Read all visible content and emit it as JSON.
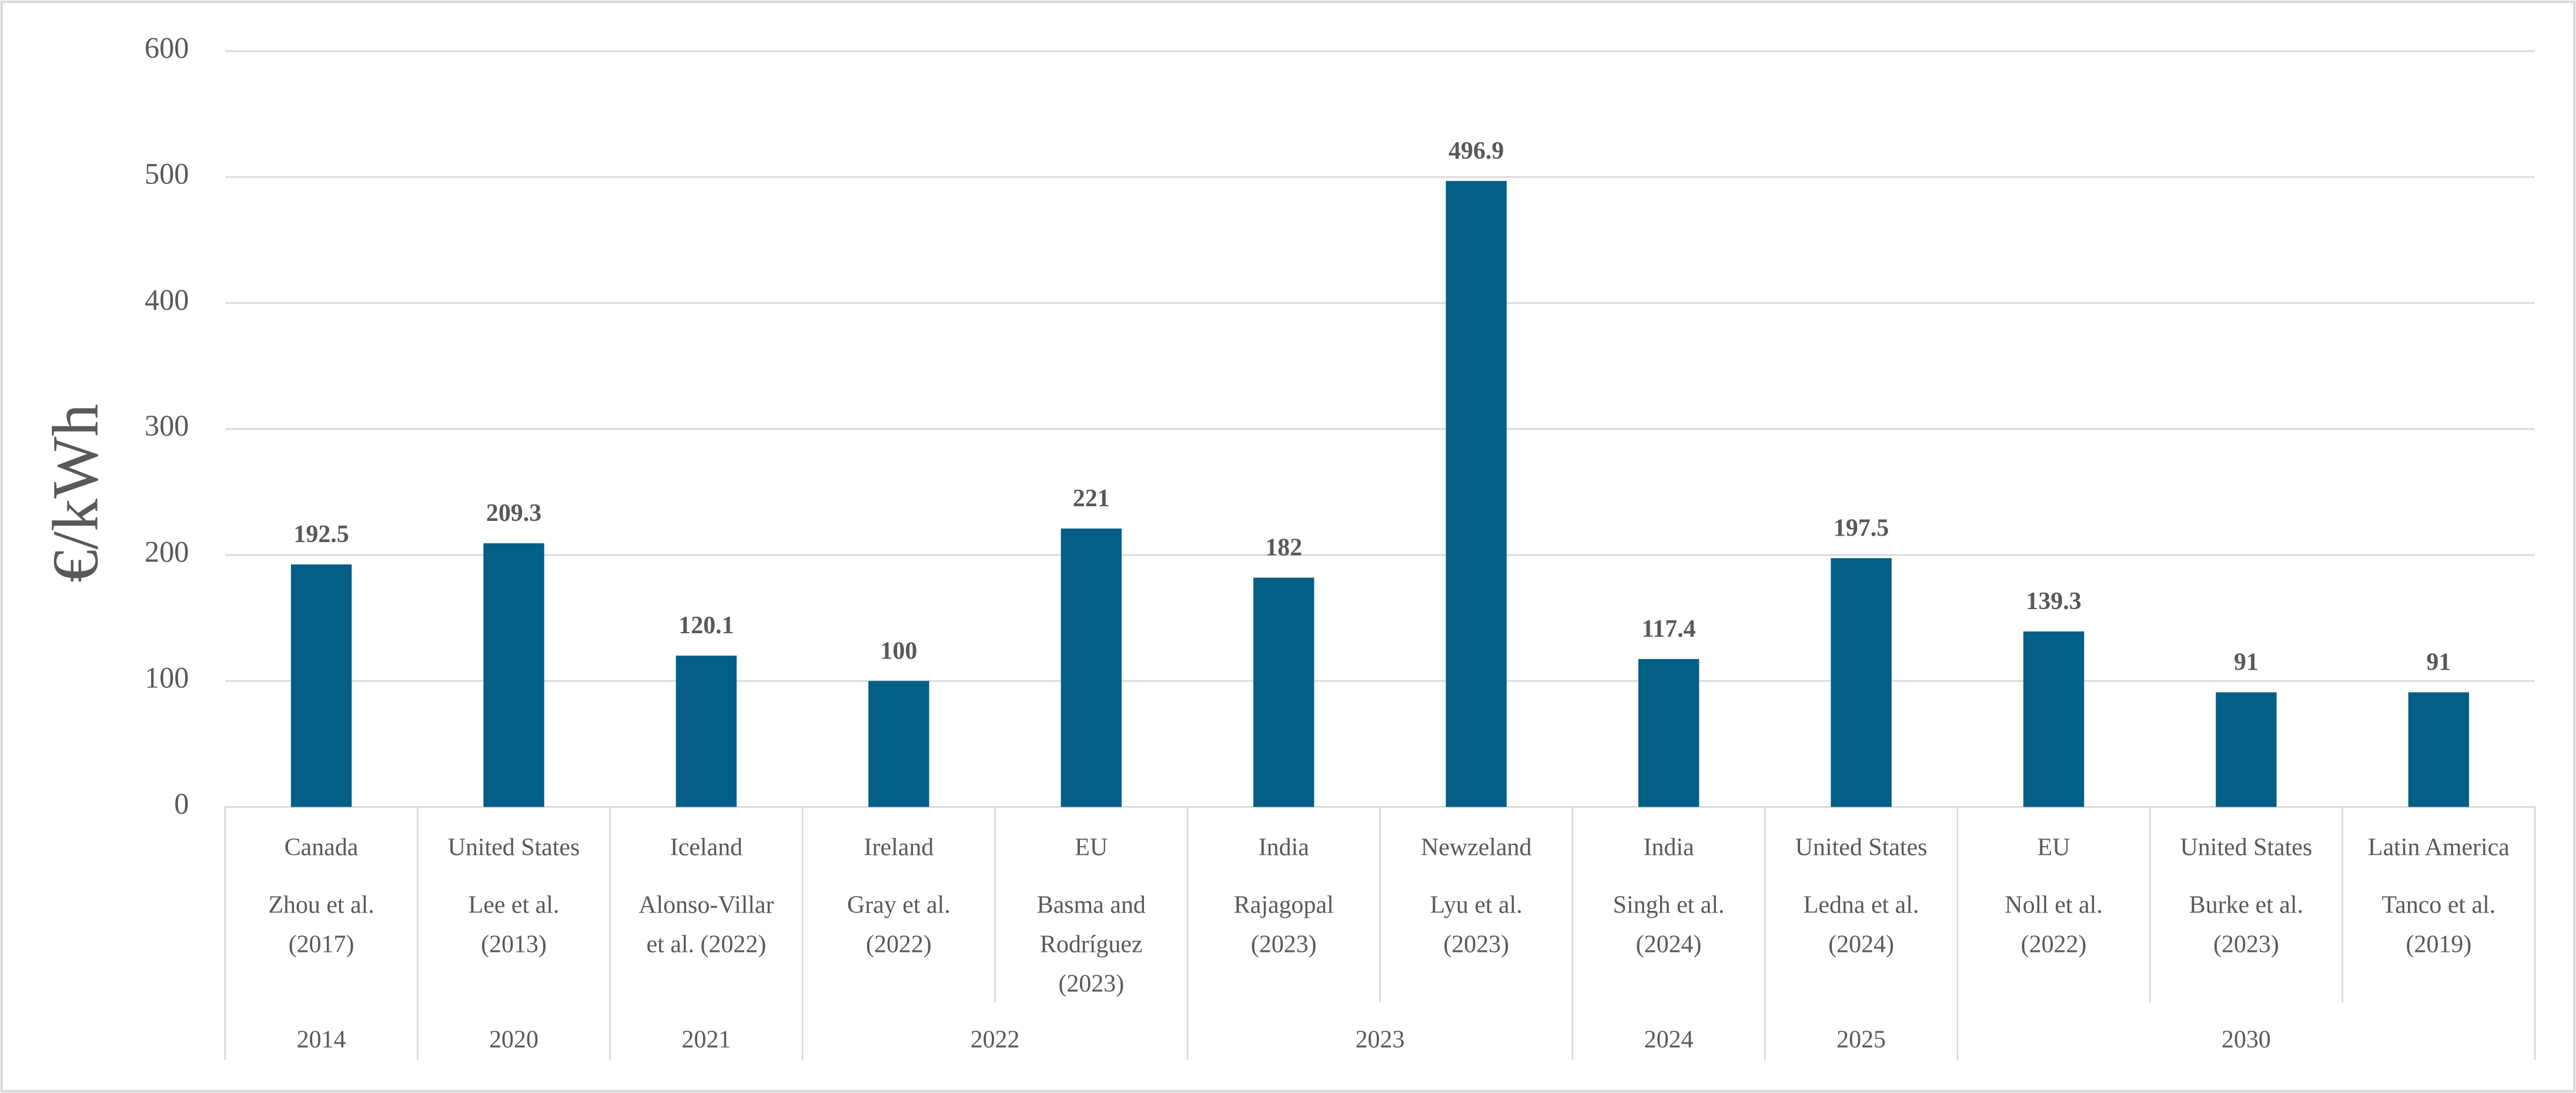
{
  "chart_data": {
    "type": "bar",
    "y_label": "€/kWh",
    "categories": [
      "Canada",
      "United States",
      "Iceland",
      "Ireland",
      "EU",
      "India",
      "Newzeland",
      "India",
      "United States",
      "EU",
      "United States",
      "Latin America"
    ],
    "studies": [
      [
        "Zhou et al.",
        "(2017)"
      ],
      [
        "Lee et al.",
        "(2013)"
      ],
      [
        "Alonso-Villar",
        "et al. (2022)"
      ],
      [
        "Gray et al.",
        "(2022)"
      ],
      [
        "Basma and",
        "Rodríguez",
        "(2023)"
      ],
      [
        "Rajagopal",
        "(2023)"
      ],
      [
        "Lyu et al.",
        "(2023)"
      ],
      [
        "Singh et al.",
        "(2024)"
      ],
      [
        "Ledna et al.",
        "(2024)"
      ],
      [
        "Noll et al.",
        "(2022)"
      ],
      [
        "Burke et al.",
        "(2023)"
      ],
      [
        "Tanco et al.",
        "(2019)"
      ]
    ],
    "years": [
      "2014",
      "2020",
      "2021",
      "2022",
      "2022",
      "2023",
      "2023",
      "2024",
      "2025",
      "2030",
      "2030",
      "2030"
    ],
    "values": [
      192.5,
      209.3,
      120.1,
      100,
      221,
      182,
      496.9,
      117.4,
      197.5,
      139.3,
      91,
      91
    ],
    "color": "#035f86",
    "ylim": [
      0,
      600
    ],
    "yticks": [
      0,
      100,
      200,
      300,
      400,
      500,
      600
    ],
    "grid": true
  }
}
